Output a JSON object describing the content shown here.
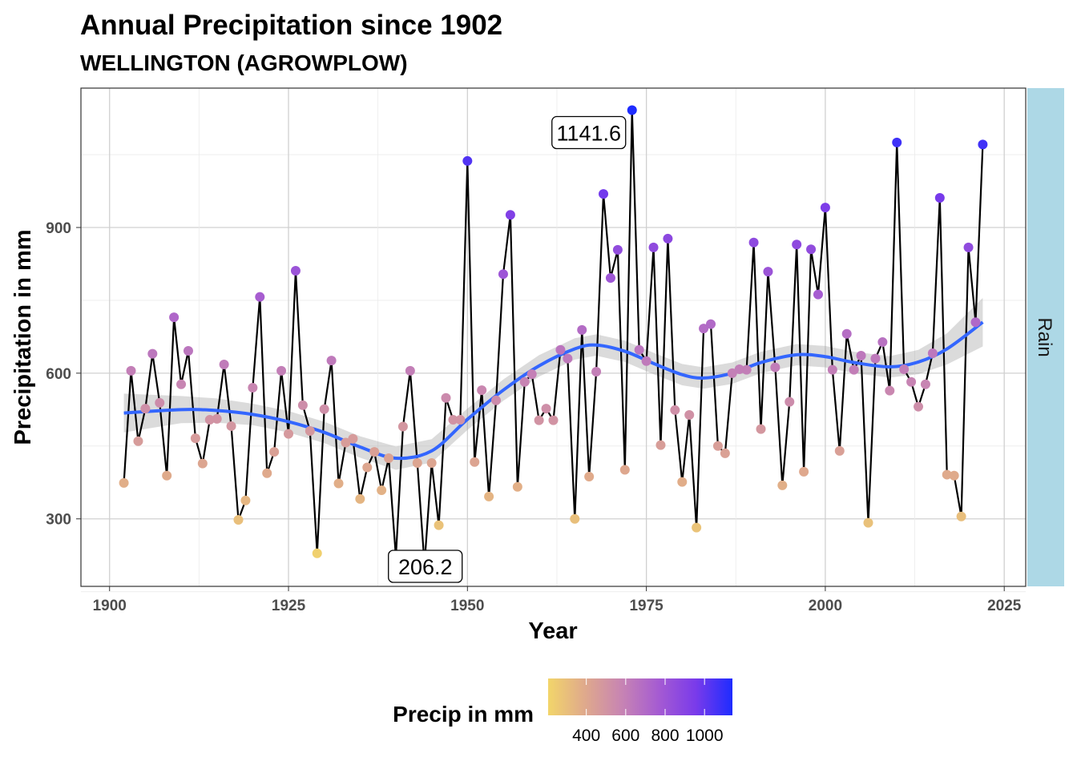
{
  "chart_data": {
    "type": "line",
    "title": "Annual Precipitation since 1902",
    "subtitle": "WELLINGTON (AGROWPLOW)",
    "xlabel": "Year",
    "ylabel": "Precipitation in mm",
    "xlim": [
      1896,
      2028
    ],
    "ylim": [
      161,
      1187
    ],
    "xticks": [
      1900,
      1925,
      1950,
      1975,
      2000,
      2025
    ],
    "yticks": [
      300,
      600,
      900
    ],
    "grid": true,
    "facet_label": "Rain",
    "legend": {
      "title": "Precip in mm",
      "ticks": [
        400,
        600,
        800,
        1000
      ],
      "range": [
        206.2,
        1141.6
      ],
      "placement": "bottom",
      "colors": [
        "#F2D56A",
        "#DFA98C",
        "#C784B3",
        "#A55BD2",
        "#7A3BEA",
        "#1E2CFF"
      ]
    },
    "annotations": [
      {
        "year": 1973,
        "label": "1141.6"
      },
      {
        "year": 1944,
        "label": "206.2"
      }
    ],
    "line_color": "#000000",
    "smooth_color": "#3366FF",
    "years_start": 1902,
    "values": [
      374,
      605,
      460,
      527,
      640,
      539,
      389,
      715,
      577,
      646,
      466,
      414,
      504,
      506,
      618,
      491,
      298,
      338,
      570,
      757,
      394,
      438,
      605,
      475,
      811,
      534,
      481,
      229,
      526,
      626,
      373,
      457,
      465,
      341,
      406,
      438,
      359,
      425,
      222,
      490,
      605,
      415,
      206.2,
      415,
      287,
      549,
      504,
      504,
      1037,
      417,
      565,
      346,
      544,
      804,
      926,
      366,
      582,
      598,
      503,
      527,
      503,
      648,
      630,
      300,
      689,
      387,
      603,
      969,
      796,
      854,
      401,
      1141.6,
      648,
      625,
      859,
      452,
      877,
      524,
      376,
      514,
      282,
      692,
      701,
      450,
      435,
      600,
      608,
      607,
      869,
      485,
      809,
      612,
      369,
      541,
      865,
      397,
      855,
      762,
      941,
      607,
      440,
      681,
      607,
      636,
      292,
      630,
      664,
      564,
      1075,
      608,
      582,
      531,
      577,
      641,
      961,
      391,
      389,
      305,
      859,
      705,
      1071
    ],
    "smooth": {
      "x": [
        1902,
        1910,
        1915,
        1920,
        1925,
        1930,
        1935,
        1940,
        1945,
        1950,
        1955,
        1960,
        1965,
        1968,
        1972,
        1976,
        1980,
        1983,
        1987,
        1991,
        1996,
        2000,
        2004,
        2009,
        2013,
        2017,
        2022
      ],
      "y": [
        518,
        525,
        523,
        515,
        500,
        478,
        448,
        425,
        440,
        505,
        565,
        615,
        650,
        658,
        645,
        620,
        597,
        590,
        600,
        622,
        638,
        634,
        622,
        613,
        623,
        650,
        705
      ],
      "se": [
        40,
        28,
        25,
        22,
        22,
        22,
        22,
        24,
        24,
        22,
        22,
        22,
        22,
        22,
        22,
        22,
        22,
        22,
        22,
        22,
        22,
        22,
        22,
        22,
        25,
        32,
        50
      ]
    }
  }
}
